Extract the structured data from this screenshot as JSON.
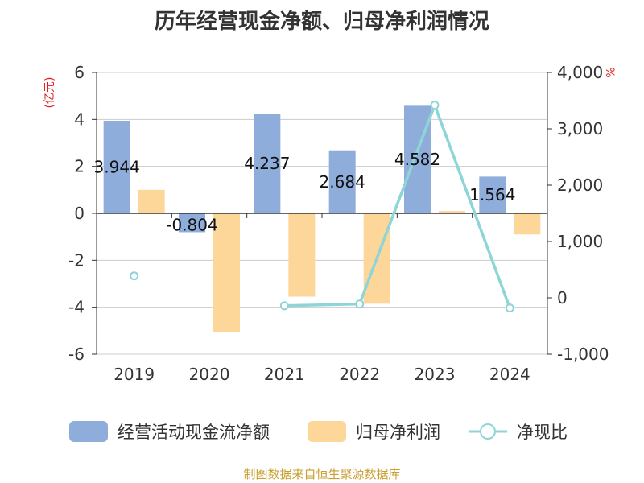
{
  "chart_data": {
    "type": "bar",
    "title": "历年经营现金净额、归母净利润情况",
    "categories": [
      "2019",
      "2020",
      "2021",
      "2022",
      "2023",
      "2024"
    ],
    "left_axis": {
      "unit_label": "(亿元)",
      "ylim": [
        -6,
        6
      ],
      "ticks": [
        -6,
        -4,
        -2,
        0,
        2,
        4,
        6
      ]
    },
    "right_axis": {
      "unit_label": "%",
      "ylim": [
        -1000,
        4000
      ],
      "ticks": [
        -1000,
        0,
        1000,
        2000,
        3000,
        4000
      ],
      "tick_labels": [
        "-1,000",
        "0",
        "1,000",
        "2,000",
        "3,000",
        "4,000"
      ]
    },
    "grid": true,
    "legend_position": "bottom",
    "series": [
      {
        "name": "经营活动现金流净额",
        "type": "bar",
        "axis": "left",
        "color": "#8eadda",
        "values": [
          3.944,
          -0.804,
          4.237,
          2.684,
          4.582,
          1.564
        ],
        "labels": [
          "3.944",
          "-0.804",
          "4.237",
          "2.684",
          "4.582",
          "1.564"
        ]
      },
      {
        "name": "归母净利润",
        "type": "bar",
        "axis": "left",
        "color": "#fdd79a",
        "values": [
          1.0,
          -5.05,
          -3.55,
          -3.85,
          0.1,
          -0.9
        ]
      },
      {
        "name": "净现比",
        "type": "line",
        "axis": "right",
        "color": "#8ed5d8",
        "values": [
          390,
          null,
          -140,
          -110,
          3420,
          -180
        ]
      }
    ]
  },
  "source_text": "制图数据来自恒生聚源数据库"
}
